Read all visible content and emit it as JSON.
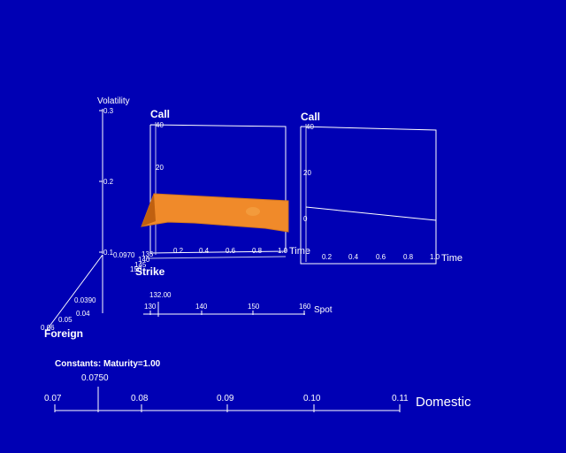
{
  "colors": {
    "background": "#0000b4",
    "axes": "#ffffff",
    "surface_main": "#f08a2a",
    "surface_shade": "#c06010"
  },
  "volatility": {
    "label": "Volatility",
    "ticks": [
      "0.3",
      "0.2",
      "0.1"
    ],
    "min": 0.1,
    "max": 0.3
  },
  "left_panel": {
    "call_label": "Call",
    "call_ticks": [
      "40",
      "20"
    ],
    "time_label": "Time",
    "time_ticks": [
      "0.2",
      "0.4",
      "0.6",
      "0.8",
      "1.0"
    ],
    "strike_label": "Strike",
    "strike_value": "0.0970",
    "strike_ticks": [
      "135",
      "140",
      "145",
      "150"
    ]
  },
  "right_panel": {
    "call_label": "Call",
    "call_ticks": [
      "40",
      "20",
      "0"
    ],
    "time_label": "Time",
    "time_ticks": [
      "0.2",
      "0.4",
      "0.6",
      "0.8",
      "1.0"
    ],
    "curve": {
      "start_call": 2,
      "end_call": -1
    }
  },
  "spot": {
    "label": "Spot",
    "value": "132.00",
    "ticks": [
      "130",
      "140",
      "150",
      "160"
    ]
  },
  "foreign": {
    "label": "Foreign",
    "value": "0.0390",
    "ticks": [
      "0.04",
      "0.05",
      "0.06"
    ]
  },
  "constants": {
    "text": "Constants:  Maturity=1.00"
  },
  "domestic": {
    "label": "Domestic",
    "value": "0.0750",
    "ticks": [
      "0.07",
      "0.08",
      "0.09",
      "0.10",
      "0.11"
    ],
    "min": 0.07,
    "max": 0.11,
    "current": 0.075
  }
}
